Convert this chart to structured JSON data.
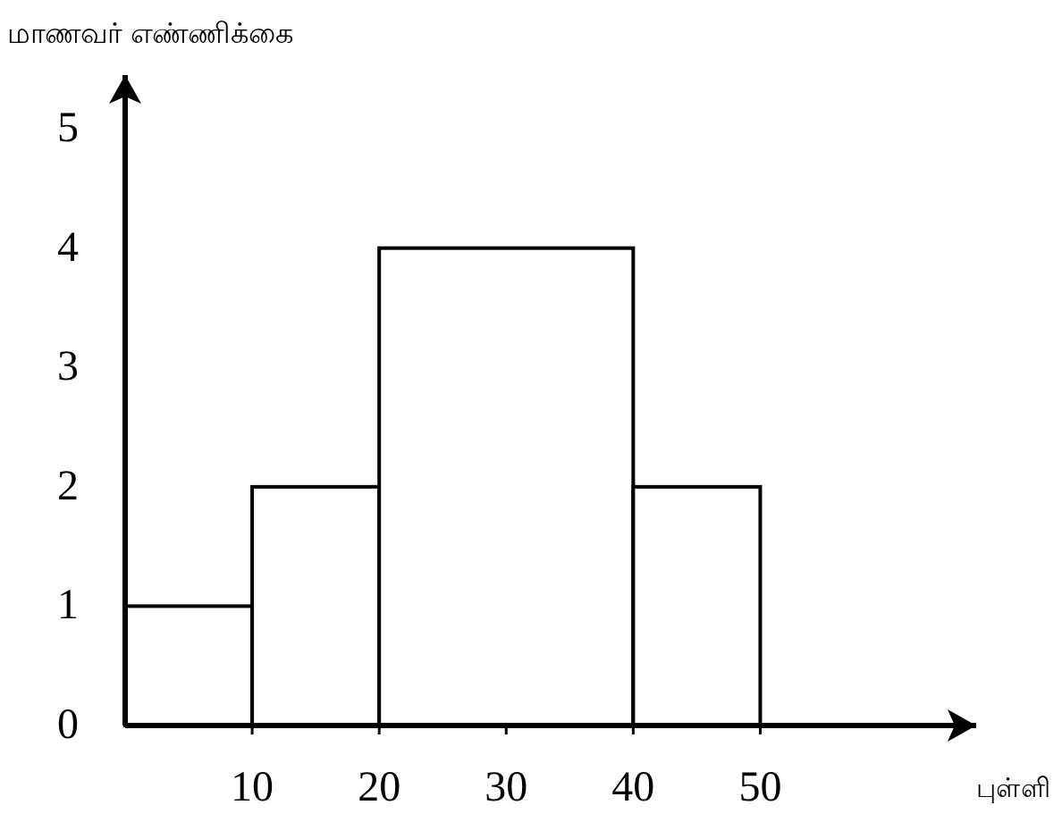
{
  "chart_data": {
    "type": "histogram",
    "xlabel": "புள்ளி",
    "ylabel": "மாணவர் எண்ணிக்கை",
    "bins": [
      0,
      10,
      20,
      40,
      50
    ],
    "values": [
      1,
      2,
      4,
      2
    ],
    "xlim": [
      0,
      67
    ],
    "ylim": [
      0,
      5.45
    ],
    "xticks": [
      10,
      20,
      30,
      40,
      50
    ],
    "yticks": [
      0,
      1,
      2,
      3,
      4,
      5
    ],
    "grid": false
  }
}
